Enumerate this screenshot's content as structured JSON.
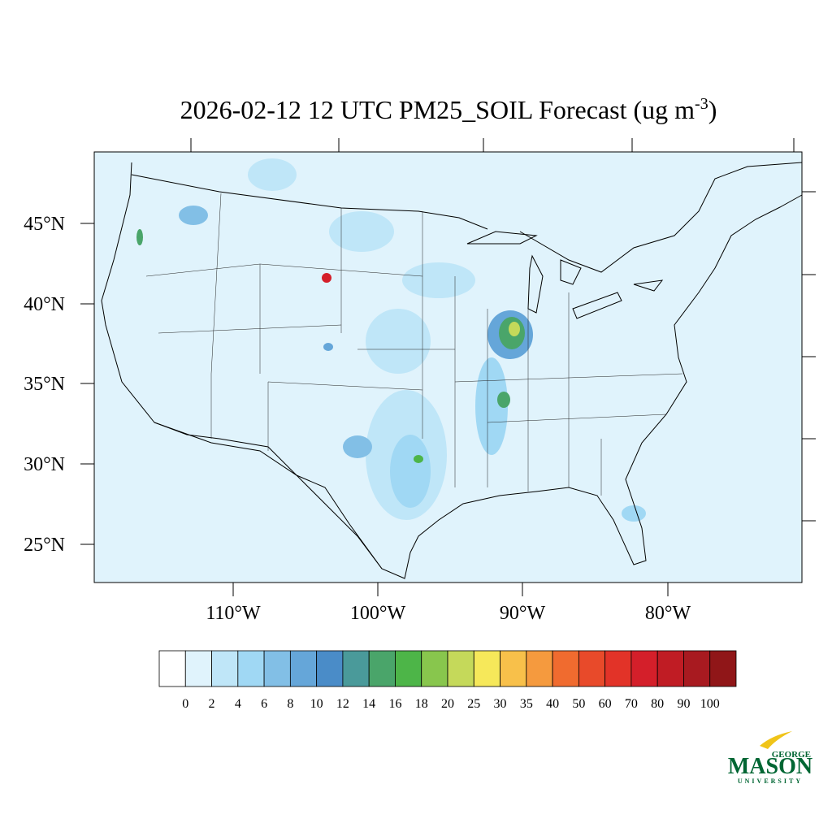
{
  "header": {
    "title": "2026-02-12 12 UTC PM25_SOIL Forecast (ug m",
    "title_superscript": "-3",
    "title_end": ")"
  },
  "map": {
    "lat_labels": [
      "45°N",
      "40°N",
      "35°N",
      "30°N",
      "25°N"
    ],
    "lon_labels": [
      "110°W",
      "100°W",
      "90°W",
      "80°W"
    ]
  },
  "colorbar": {
    "levels": [
      0,
      2,
      4,
      6,
      8,
      10,
      12,
      14,
      16,
      18,
      20,
      25,
      30,
      35,
      40,
      50,
      60,
      70,
      80,
      90,
      100
    ],
    "colors": [
      "#ffffff",
      "#e0f3fc",
      "#bfe6f8",
      "#a0d8f4",
      "#82bfe6",
      "#65a6d9",
      "#4a8cc8",
      "#4a9a9a",
      "#4aa56a",
      "#4db548",
      "#88c64d",
      "#c5d95a",
      "#f6e85a",
      "#f8c04a",
      "#f59a3e",
      "#f06b2f",
      "#e84a2a",
      "#e23328",
      "#d41f2a",
      "#c01c24",
      "#a81a20",
      "#901618"
    ]
  },
  "logo": {
    "top": "GEORGE",
    "main": "MASON",
    "bottom": "UNIVERSITY"
  }
}
